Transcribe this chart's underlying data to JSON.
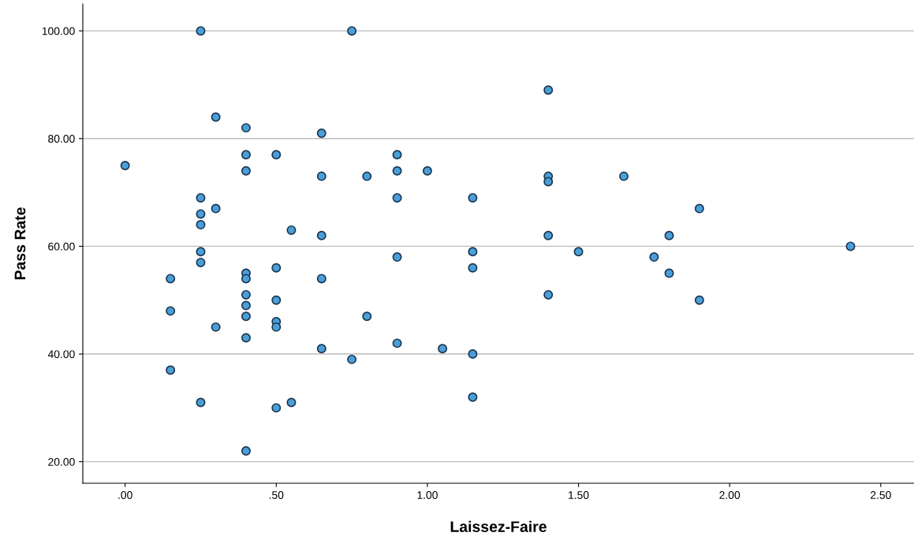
{
  "chart_data": {
    "type": "scatter",
    "xlabel": "Laissez-Faire",
    "ylabel": "Pass Rate",
    "x": [
      0.25,
      0.75,
      1.4,
      0.3,
      0.4,
      0.65,
      0,
      0.4,
      0.5,
      0.9,
      0.4,
      0.9,
      1.0,
      0.65,
      0.8,
      1.4,
      1.4,
      1.65,
      0.25,
      0.9,
      1.15,
      0.3,
      1.9,
      0.25,
      0.25,
      0.55,
      0.65,
      1.4,
      1.8,
      0.25,
      1.15,
      1.5,
      2.4,
      0.9,
      1.75,
      0.25,
      0.4,
      0.4,
      0.5,
      1.15,
      1.8,
      0.15,
      0.65,
      0.4,
      1.4,
      0.5,
      1.9,
      0.4,
      0.15,
      0.4,
      0.8,
      0.5,
      0.5,
      0.3,
      0.4,
      0.9,
      0.65,
      1.05,
      1.15,
      0.75,
      0.15,
      1.15,
      0.25,
      0.55,
      0.5,
      0.4
    ],
    "series": [
      {
        "color": "#4a9fd8",
        "values": [
          100,
          100,
          89,
          84,
          82,
          81,
          75,
          77,
          77,
          77,
          74,
          74,
          74,
          73,
          73,
          73,
          72,
          73,
          69,
          69,
          69,
          67,
          67,
          66,
          64,
          63,
          62,
          62,
          62,
          59,
          59,
          59,
          60,
          58,
          58,
          57,
          55,
          54,
          56,
          56,
          55,
          54,
          54,
          51,
          51,
          50,
          50,
          49,
          48,
          47,
          47,
          46,
          45,
          45,
          43,
          42,
          41,
          41,
          40,
          39,
          37,
          32,
          31,
          31,
          30,
          22
        ]
      }
    ],
    "marker": "circle",
    "grid": "y",
    "xlim": [
      -0.14,
      2.61
    ],
    "xticks": [
      {
        "value": 0,
        "label": ".00"
      },
      {
        "value": 0.5,
        "label": ".50"
      },
      {
        "value": 1.0,
        "label": "1.00"
      },
      {
        "value": 1.5,
        "label": "1.50"
      },
      {
        "value": 2.0,
        "label": "2.00"
      },
      {
        "value": 2.5,
        "label": "2.50"
      }
    ],
    "ylim": [
      16,
      105
    ],
    "yticks": [
      {
        "value": 20,
        "label": "20.00"
      },
      {
        "value": 40,
        "label": "40.00"
      },
      {
        "value": 60,
        "label": "60.00"
      },
      {
        "value": 80,
        "label": "80.00"
      },
      {
        "value": 100,
        "label": "100.00"
      }
    ]
  }
}
